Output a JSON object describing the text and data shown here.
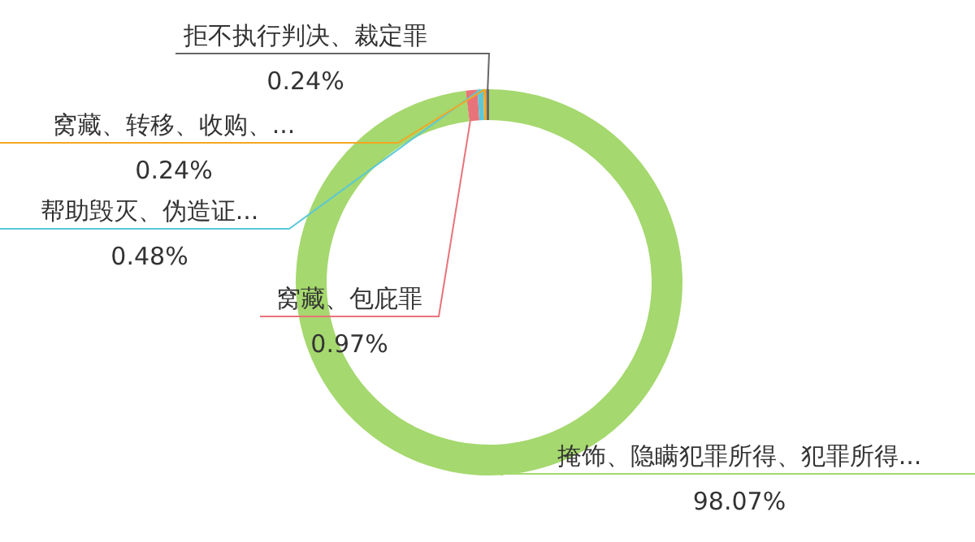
{
  "chart_data": {
    "type": "donut",
    "categories": [
      "掩饰、隐瞒犯罪所得、犯罪所得...",
      "窝藏、包庇罪",
      "帮助毁灭、伪造证...",
      "窝藏、转移、收购、...",
      "拒不执行判决、裁定罪"
    ],
    "values": [
      98.07,
      0.97,
      0.48,
      0.24,
      0.24
    ],
    "colors": [
      "#a5d86e",
      "#e8737a",
      "#5bc8d8",
      "#f5a623",
      "#666666"
    ],
    "value_labels": [
      "98.07%",
      "0.97%",
      "0.48%",
      "0.24%",
      "0.24%"
    ]
  }
}
